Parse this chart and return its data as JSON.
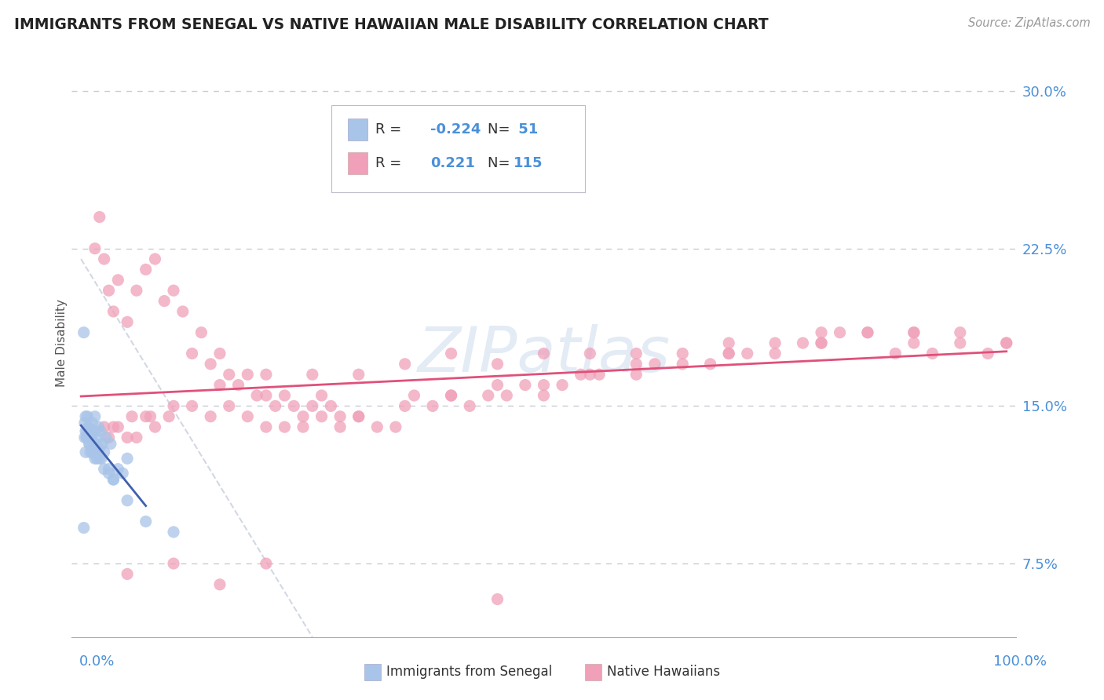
{
  "title": "IMMIGRANTS FROM SENEGAL VS NATIVE HAWAIIAN MALE DISABILITY CORRELATION CHART",
  "source": "Source: ZipAtlas.com",
  "ylabel": "Male Disability",
  "ytick_vals": [
    7.5,
    15.0,
    22.5,
    30.0
  ],
  "legend1_label": "Immigrants from Senegal",
  "legend2_label": "Native Hawaiians",
  "r1": -0.224,
  "n1": 51,
  "r2": 0.221,
  "n2": 115,
  "color_blue": "#a8c4e8",
  "color_pink": "#f0a0b8",
  "color_blue_text": "#4a90d9",
  "color_line_blue": "#4060b0",
  "color_line_pink": "#e0507a",
  "color_line_gray": "#c0c8d8",
  "background": "#ffffff",
  "grid_color": "#c8ccd4",
  "xmin": 0,
  "xmax": 100,
  "ymin": 4,
  "ymax": 32,
  "senegal_x": [
    0.3,
    0.4,
    0.5,
    0.6,
    0.7,
    0.8,
    0.9,
    1.0,
    1.0,
    1.1,
    1.2,
    1.3,
    1.4,
    1.5,
    1.6,
    1.7,
    1.8,
    1.9,
    2.0,
    2.1,
    2.2,
    2.3,
    2.5,
    2.7,
    3.0,
    3.2,
    3.5,
    4.0,
    4.5,
    5.0,
    0.5,
    0.6,
    0.8,
    1.0,
    1.2,
    1.5,
    0.4,
    0.5,
    0.7,
    0.9,
    1.1,
    1.3,
    1.6,
    2.0,
    2.5,
    3.0,
    3.5,
    5.0,
    7.0,
    10.0,
    0.3
  ],
  "senegal_y": [
    18.5,
    14.2,
    13.8,
    13.5,
    14.5,
    14.0,
    13.2,
    13.8,
    12.8,
    13.5,
    14.2,
    13.0,
    13.8,
    14.5,
    13.2,
    12.5,
    13.5,
    14.0,
    13.0,
    13.8,
    12.5,
    13.2,
    12.8,
    13.5,
    12.0,
    13.2,
    11.5,
    12.0,
    11.8,
    12.5,
    12.8,
    13.5,
    14.0,
    13.5,
    13.0,
    12.5,
    13.5,
    14.5,
    13.8,
    13.2,
    13.5,
    12.8,
    13.0,
    12.5,
    12.0,
    11.8,
    11.5,
    10.5,
    9.5,
    9.0,
    9.2
  ],
  "hawaiian_x": [
    1.5,
    2.0,
    2.5,
    3.0,
    3.5,
    4.0,
    5.0,
    6.0,
    7.0,
    8.0,
    9.0,
    10.0,
    11.0,
    12.0,
    13.0,
    14.0,
    15.0,
    16.0,
    17.0,
    18.0,
    19.0,
    20.0,
    21.0,
    22.0,
    23.0,
    24.0,
    25.0,
    26.0,
    27.0,
    28.0,
    30.0,
    32.0,
    34.0,
    36.0,
    38.0,
    40.0,
    42.0,
    44.0,
    46.0,
    48.0,
    50.0,
    52.0,
    54.0,
    56.0,
    60.0,
    62.0,
    65.0,
    68.0,
    70.0,
    72.0,
    75.0,
    78.0,
    80.0,
    82.0,
    85.0,
    88.0,
    90.0,
    92.0,
    95.0,
    98.0,
    3.0,
    4.0,
    5.0,
    6.0,
    7.0,
    8.0,
    10.0,
    12.0,
    14.0,
    16.0,
    18.0,
    20.0,
    22.0,
    24.0,
    26.0,
    28.0,
    30.0,
    35.0,
    40.0,
    45.0,
    50.0,
    55.0,
    60.0,
    65.0,
    70.0,
    75.0,
    80.0,
    85.0,
    90.0,
    95.0,
    100.0,
    2.5,
    3.5,
    5.5,
    7.5,
    9.5,
    15.0,
    20.0,
    25.0,
    30.0,
    35.0,
    40.0,
    45.0,
    50.0,
    55.0,
    60.0,
    70.0,
    80.0,
    90.0,
    100.0,
    5.0,
    10.0,
    15.0,
    20.0,
    45.0
  ],
  "hawaiian_y": [
    22.5,
    24.0,
    22.0,
    20.5,
    19.5,
    21.0,
    19.0,
    20.5,
    21.5,
    22.0,
    20.0,
    20.5,
    19.5,
    17.5,
    18.5,
    17.0,
    17.5,
    16.5,
    16.0,
    16.5,
    15.5,
    15.5,
    15.0,
    15.5,
    15.0,
    14.5,
    15.0,
    15.5,
    15.0,
    14.5,
    14.5,
    14.0,
    14.0,
    15.5,
    15.0,
    15.5,
    15.0,
    15.5,
    15.5,
    16.0,
    15.5,
    16.0,
    16.5,
    16.5,
    16.5,
    17.0,
    17.5,
    17.0,
    17.5,
    17.5,
    18.0,
    18.0,
    18.0,
    18.5,
    18.5,
    17.5,
    18.0,
    17.5,
    18.0,
    17.5,
    13.5,
    14.0,
    13.5,
    13.5,
    14.5,
    14.0,
    15.0,
    15.0,
    14.5,
    15.0,
    14.5,
    14.0,
    14.0,
    14.0,
    14.5,
    14.0,
    14.5,
    15.0,
    15.5,
    16.0,
    16.0,
    16.5,
    17.0,
    17.0,
    17.5,
    17.5,
    18.0,
    18.5,
    18.5,
    18.5,
    18.0,
    14.0,
    14.0,
    14.5,
    14.5,
    14.5,
    16.0,
    16.5,
    16.5,
    16.5,
    17.0,
    17.5,
    17.0,
    17.5,
    17.5,
    17.5,
    18.0,
    18.5,
    18.5,
    18.0,
    7.0,
    7.5,
    6.5,
    7.5,
    5.8
  ]
}
